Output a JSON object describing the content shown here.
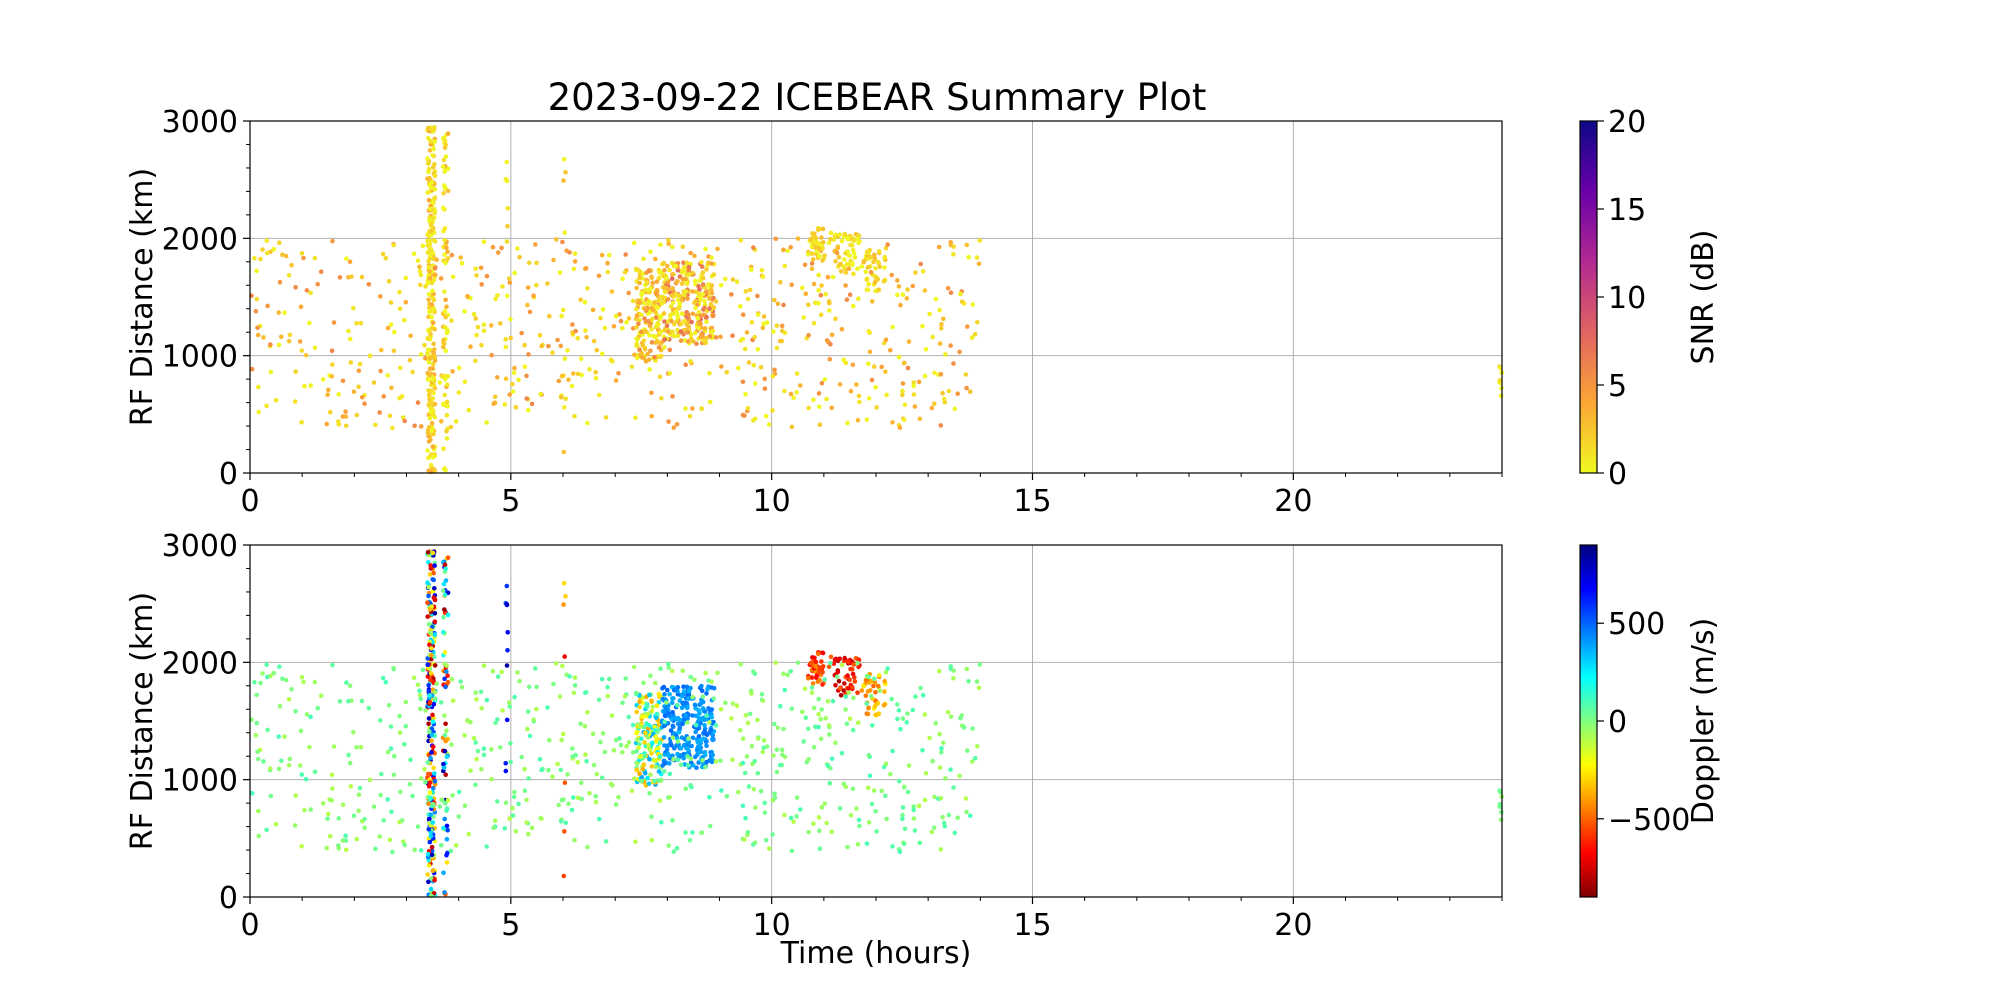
{
  "figure": {
    "title": "2023-09-22 ICEBEAR Summary Plot"
  },
  "chart_data": [
    {
      "type": "scatter",
      "name": "snr-panel",
      "xlabel": "",
      "ylabel": "RF Distance (km)",
      "xlim": [
        0,
        24
      ],
      "ylim": [
        0,
        3000
      ],
      "xticks": [
        0,
        5,
        10,
        15,
        20
      ],
      "yticks": [
        0,
        1000,
        2000,
        3000
      ],
      "grid": true,
      "color_variable": "snr",
      "colorbar": {
        "label": "SNR (dB)",
        "range": [
          0,
          20
        ],
        "ticks": [
          0,
          5,
          10,
          15,
          20
        ],
        "colormap": "plasma_r",
        "stops": [
          "#f0f921",
          "#fca636",
          "#e16462",
          "#b12a90",
          "#6a00a8",
          "#0d0887"
        ]
      },
      "clusters": [
        {
          "desc": "vertical band near 3.5 h",
          "x": [
            3.4,
            3.55
          ],
          "y": [
            0,
            2950
          ],
          "n": 260,
          "snr": [
            0,
            4
          ],
          "doppler": [
            -850,
            850
          ]
        },
        {
          "desc": "vertical band near 3.75 h",
          "x": [
            3.7,
            3.8
          ],
          "y": [
            0,
            2950
          ],
          "n": 70,
          "snr": [
            0,
            4
          ],
          "doppler": [
            -850,
            850
          ]
        },
        {
          "desc": "sparse hits near 4.9 h",
          "x": [
            4.9,
            4.95
          ],
          "y": [
            0,
            2950
          ],
          "n": 10,
          "snr": [
            0,
            3
          ],
          "doppler": [
            500,
            850
          ]
        },
        {
          "desc": "sparse hits near 6 h",
          "x": [
            6.0,
            6.05
          ],
          "y": [
            100,
            2750
          ],
          "n": 8,
          "snr": [
            0,
            3
          ],
          "doppler": [
            -800,
            800
          ]
        },
        {
          "desc": "dense echo 7.4-7.9 h",
          "x": [
            7.4,
            7.9
          ],
          "y": [
            950,
            1750
          ],
          "n": 170,
          "snr": [
            0,
            6
          ],
          "doppler": [
            -400,
            400
          ]
        },
        {
          "desc": "dense echo 7.9-8.9 h",
          "x": [
            7.9,
            8.9
          ],
          "y": [
            1100,
            1800
          ],
          "n": 280,
          "snr": [
            0,
            8
          ],
          "doppler": [
            350,
            500
          ]
        },
        {
          "desc": "arc 10.7-11.0 h",
          "x": [
            10.7,
            11.0
          ],
          "y": [
            1800,
            2100
          ],
          "n": 40,
          "snr": [
            0,
            3
          ],
          "doppler": [
            -700,
            -400
          ]
        },
        {
          "desc": "arc 11.1-11.7 h",
          "x": [
            11.1,
            11.7
          ],
          "y": [
            1700,
            2050
          ],
          "n": 50,
          "snr": [
            0,
            3
          ],
          "doppler": [
            -850,
            -500
          ]
        },
        {
          "desc": "arc 11.7-12.2 h",
          "x": [
            11.7,
            12.2
          ],
          "y": [
            1550,
            1900
          ],
          "n": 40,
          "snr": [
            0,
            3
          ],
          "doppler": [
            -500,
            -250
          ]
        },
        {
          "desc": "diffuse background 0-14 h",
          "x": [
            0,
            14
          ],
          "y": [
            380,
            2000
          ],
          "n": 650,
          "snr": [
            0,
            6
          ],
          "doppler": [
            -100,
            100
          ]
        },
        {
          "desc": "edge hits near 24 h",
          "x": [
            23.95,
            24.0
          ],
          "y": [
            650,
            1000
          ],
          "n": 8,
          "snr": [
            0,
            2
          ],
          "doppler": [
            -50,
            50
          ]
        }
      ]
    },
    {
      "type": "scatter",
      "name": "doppler-panel",
      "xlabel": "Time (hours)",
      "ylabel": "RF Distance (km)",
      "xlim": [
        0,
        24
      ],
      "ylim": [
        0,
        3000
      ],
      "xticks": [
        0,
        5,
        10,
        15,
        20
      ],
      "yticks": [
        0,
        1000,
        2000,
        3000
      ],
      "grid": true,
      "color_variable": "doppler",
      "colorbar": {
        "label": "Doppler (m/s)",
        "range": [
          -900,
          900
        ],
        "ticks": [
          -500,
          0,
          500
        ],
        "tick_labels": [
          "−500",
          "0",
          "500"
        ],
        "colormap": "jet_r",
        "stops": [
          "#800000",
          "#ff0000",
          "#ff8000",
          "#ffff00",
          "#80ff80",
          "#00ffff",
          "#0080ff",
          "#0000ff",
          "#000080"
        ]
      },
      "uses_clusters_of": "snr-panel"
    }
  ]
}
